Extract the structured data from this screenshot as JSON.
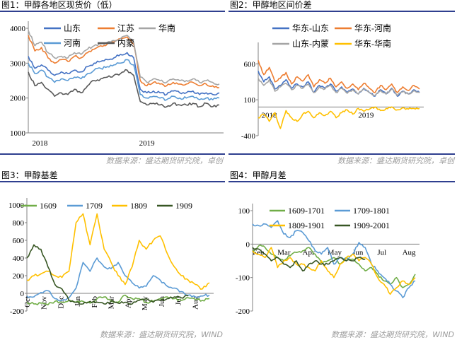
{
  "panels": [
    {
      "title": "图1：甲醇各地区现货价（低）",
      "source": "数据来源：盛达期货研究院，卓创"
    },
    {
      "title": "图2：甲醇地区间价差",
      "source": "数据来源：盛达期货研究院，卓创"
    },
    {
      "title": "图3：甲醇基差",
      "source": "数据来源：盛达期货研究院，WIND"
    },
    {
      "title": "图4：甲醇月差",
      "source": "数据来源：盛达期货研究院，WIND"
    }
  ],
  "chart_data": [
    {
      "type": "line",
      "title": "图1：甲醇各地区现货价（低）",
      "x_ticks": [
        "2018",
        "2019"
      ],
      "ylim": [
        1000,
        4000
      ],
      "y_ticks": [
        1000,
        2000,
        3000,
        4000
      ],
      "grid": false,
      "legend": "top",
      "series": [
        {
          "name": "山东",
          "color": "#4472c4",
          "values": [
            3200,
            2850,
            2950,
            2800,
            2650,
            2750,
            2700,
            2800,
            2750,
            2900,
            3000,
            3050,
            3100,
            3150,
            3250,
            3300,
            3150,
            2250,
            2150,
            2200,
            2150,
            2100,
            2200,
            2150,
            2150,
            2200,
            2100,
            2150,
            2100,
            2150
          ]
        },
        {
          "name": "江苏",
          "color": "#ed7d31",
          "values": [
            3800,
            3350,
            3450,
            3150,
            3000,
            3100,
            3050,
            3200,
            3150,
            3300,
            3400,
            3500,
            3550,
            3600,
            3700,
            3750,
            3550,
            2500,
            2350,
            2450,
            2400,
            2350,
            2450,
            2400,
            2400,
            2450,
            2350,
            2400,
            2350,
            2300
          ]
        },
        {
          "name": "华南",
          "color": "#a5a5a5",
          "values": [
            3950,
            3500,
            3600,
            3300,
            3150,
            3200,
            3150,
            3300,
            3250,
            3400,
            3500,
            3550,
            3600,
            3650,
            3700,
            3800,
            3600,
            2600,
            2450,
            2550,
            2500,
            2450,
            2550,
            2500,
            2500,
            2550,
            2450,
            2500,
            2450,
            2400
          ]
        },
        {
          "name": "河南",
          "color": "#5b9bd5",
          "values": [
            3000,
            2700,
            2800,
            2600,
            2450,
            2550,
            2500,
            2600,
            2550,
            2700,
            2800,
            2850,
            2900,
            2950,
            3000,
            3100,
            2950,
            2100,
            2000,
            2050,
            2000,
            1950,
            2050,
            2000,
            2000,
            2050,
            1950,
            2000,
            1950,
            2000
          ]
        },
        {
          "name": "内蒙",
          "color": "#595959",
          "values": [
            2750,
            2350,
            2450,
            2250,
            2050,
            2150,
            2100,
            2250,
            2150,
            2350,
            2500,
            2550,
            2600,
            2650,
            2700,
            2800,
            2650,
            1900,
            1800,
            1850,
            1800,
            1750,
            1850,
            1800,
            1800,
            1850,
            1750,
            1850,
            1750,
            1800
          ]
        }
      ]
    },
    {
      "type": "line",
      "title": "图2：甲醇地区间价差",
      "x_ticks": [
        "2018",
        "2019"
      ],
      "ylim": [
        -400,
        800
      ],
      "y_ticks": [
        -400,
        100,
        600
      ],
      "grid": false,
      "legend": "top",
      "series": [
        {
          "name": "华东-山东",
          "color": "#4472c4",
          "values": [
            500,
            350,
            420,
            250,
            300,
            380,
            260,
            320,
            280,
            350,
            200,
            300,
            260,
            320,
            220,
            280,
            200,
            250,
            180,
            260,
            200,
            150,
            240,
            180,
            260,
            150,
            220,
            180,
            240,
            200
          ]
        },
        {
          "name": "华东-河南",
          "color": "#ed7d31",
          "values": [
            650,
            450,
            550,
            350,
            400,
            480,
            320,
            420,
            360,
            450,
            280,
            380,
            330,
            400,
            280,
            350,
            260,
            320,
            240,
            330,
            260,
            200,
            300,
            240,
            320,
            200,
            280,
            230,
            300,
            250
          ]
        },
        {
          "name": "山东-内蒙",
          "color": "#a5a5a5",
          "values": [
            400,
            300,
            380,
            220,
            280,
            330,
            240,
            300,
            260,
            320,
            200,
            280,
            250,
            300,
            200,
            260,
            190,
            240,
            180,
            250,
            200,
            160,
            230,
            180,
            250,
            160,
            210,
            180,
            230,
            200
          ]
        },
        {
          "name": "华东-华南",
          "color": "#ffc000",
          "values": [
            -150,
            -100,
            -200,
            -80,
            -300,
            -50,
            -150,
            -200,
            -100,
            -60,
            -150,
            -80,
            -120,
            -60,
            -150,
            -80,
            -40,
            -100,
            -20,
            -60,
            -30,
            0,
            -50,
            -20,
            0,
            -40,
            -10,
            -30,
            -20,
            -20
          ]
        }
      ]
    },
    {
      "type": "line",
      "title": "图3：甲醇基差",
      "x_ticks": [
        "Oct",
        "Nov",
        "Dec",
        "Jan",
        "Feb",
        "Mar",
        "Apr",
        "May",
        "Jun",
        "Jul",
        "Aug"
      ],
      "ylim": [
        -200,
        1000
      ],
      "y_ticks": [
        -200,
        0,
        200,
        400,
        600,
        800,
        1000
      ],
      "grid": false,
      "legend": "top",
      "series": [
        {
          "name": "1609",
          "color": "#70ad47",
          "values": [
            -100,
            -120,
            -110,
            -130,
            -90,
            -100,
            -80,
            -100,
            -90,
            -110,
            -60,
            -40,
            -80,
            -100,
            -20,
            -60,
            -60,
            -100,
            -90,
            -60,
            -40,
            -60,
            -80,
            -50,
            -70,
            -80,
            -60
          ]
        },
        {
          "name": "1709",
          "color": "#5b9bd5",
          "values": [
            -30,
            -40,
            10,
            30,
            -60,
            -80,
            -50,
            60,
            350,
            250,
            400,
            300,
            280,
            350,
            200,
            120,
            60,
            80,
            200,
            150,
            80,
            60,
            20,
            -20,
            -40,
            -30,
            -20
          ]
        },
        {
          "name": "1809",
          "color": "#ffc000",
          "values": [
            150,
            200,
            220,
            250,
            200,
            180,
            250,
            800,
            900,
            550,
            900,
            500,
            350,
            200,
            100,
            300,
            600,
            500,
            600,
            650,
            450,
            300,
            200,
            150,
            100,
            50,
            120
          ]
        },
        {
          "name": "1909",
          "color": "#375623",
          "values": [
            400,
            550,
            500,
            300,
            100,
            50,
            -80,
            -100,
            -120,
            -90,
            -100,
            -120,
            -90,
            -110,
            -100,
            -120,
            -80,
            -60,
            -100,
            -80,
            -60,
            -40,
            -50,
            -30,
            null,
            null,
            null
          ]
        }
      ]
    },
    {
      "type": "line",
      "title": "图4：甲醇月差",
      "x_ticks": [
        "Feb",
        "Mar",
        "Apr",
        "May",
        "Jun",
        "Jul",
        "Aug"
      ],
      "ylim": [
        -200,
        100
      ],
      "y_ticks": [
        -200,
        -100,
        0,
        100
      ],
      "grid": false,
      "legend": "top",
      "series": [
        {
          "name": "1609-1701",
          "color": "#70ad47",
          "values": [
            -20,
            -5,
            -10,
            -30,
            -40,
            -50,
            -35,
            -25,
            -20,
            -10,
            -30,
            -55,
            -50,
            -40,
            -60,
            -40,
            -45,
            -60,
            -80,
            -70,
            -90,
            -110,
            -120,
            -100,
            -130,
            -120,
            -90
          ]
        },
        {
          "name": "1709-1801",
          "color": "#5b9bd5",
          "values": [
            60,
            55,
            60,
            50,
            70,
            30,
            20,
            40,
            35,
            10,
            -20,
            -30,
            -10,
            -60,
            -40,
            -50,
            -30,
            5,
            -10,
            -60,
            -80,
            -100,
            -120,
            -140,
            -160,
            -130,
            -110
          ]
        },
        {
          "name": "1809-1901",
          "color": "#ffc000",
          "values": [
            -20,
            -30,
            -40,
            -10,
            -70,
            -50,
            -40,
            -60,
            -60,
            -70,
            -80,
            -50,
            -80,
            -100,
            -60,
            -40,
            -30,
            -50,
            -40,
            -60,
            -100,
            -120,
            -150,
            -130,
            -110,
            -120,
            -100
          ]
        },
        {
          "name": "1909-2001",
          "color": "#375623",
          "values": [
            -10,
            -15,
            -30,
            -50,
            -40,
            -60,
            -70,
            -50,
            -80,
            -60,
            -50,
            -60,
            -60,
            -50,
            -40,
            -50,
            -50,
            -40,
            -45,
            null,
            null,
            null,
            null,
            null,
            null,
            null,
            null
          ]
        }
      ]
    }
  ]
}
